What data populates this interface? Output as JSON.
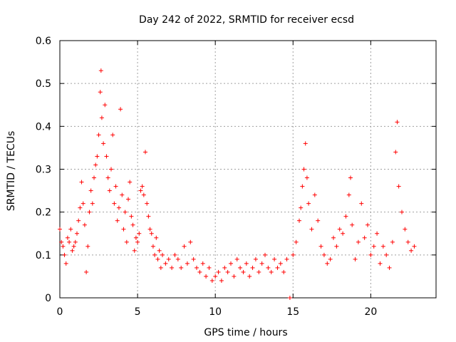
{
  "chart_data": {
    "type": "scatter",
    "title": "Day 242 of 2022, SRMTID for receiver ecsd",
    "xlabel": "GPS time / hours",
    "ylabel": "SRMTID / TECUs",
    "xlim": [
      0,
      24.2
    ],
    "ylim": [
      0,
      0.6
    ],
    "xticks": [
      0,
      5,
      10,
      15,
      20
    ],
    "yticks": [
      0,
      0.1,
      0.2,
      0.3,
      0.4,
      0.5,
      0.6
    ],
    "xtick_labels": [
      "0",
      "5",
      "10",
      "15",
      "20"
    ],
    "ytick_labels": [
      "0",
      "0.1",
      "0.2",
      "0.3",
      "0.4",
      "0.5",
      "0.6"
    ],
    "grid": true,
    "marker": "+",
    "color": "#ff0000",
    "series": [
      {
        "name": "SRMTID",
        "points": [
          [
            0.0,
            0.16
          ],
          [
            0.1,
            0.13
          ],
          [
            0.2,
            0.12
          ],
          [
            0.3,
            0.1
          ],
          [
            0.4,
            0.08
          ],
          [
            0.5,
            0.14
          ],
          [
            0.6,
            0.13
          ],
          [
            0.7,
            0.16
          ],
          [
            0.8,
            0.11
          ],
          [
            0.9,
            0.12
          ],
          [
            1.0,
            0.13
          ],
          [
            1.1,
            0.15
          ],
          [
            1.2,
            0.18
          ],
          [
            1.3,
            0.21
          ],
          [
            1.4,
            0.27
          ],
          [
            1.5,
            0.22
          ],
          [
            1.6,
            0.17
          ],
          [
            1.7,
            0.06
          ],
          [
            1.8,
            0.12
          ],
          [
            1.9,
            0.2
          ],
          [
            2.0,
            0.25
          ],
          [
            2.1,
            0.22
          ],
          [
            2.2,
            0.28
          ],
          [
            2.3,
            0.31
          ],
          [
            2.4,
            0.33
          ],
          [
            2.5,
            0.38
          ],
          [
            2.6,
            0.48
          ],
          [
            2.65,
            0.53
          ],
          [
            2.7,
            0.42
          ],
          [
            2.8,
            0.36
          ],
          [
            2.9,
            0.45
          ],
          [
            3.0,
            0.33
          ],
          [
            3.1,
            0.28
          ],
          [
            3.2,
            0.25
          ],
          [
            3.3,
            0.3
          ],
          [
            3.4,
            0.38
          ],
          [
            3.5,
            0.22
          ],
          [
            3.6,
            0.26
          ],
          [
            3.7,
            0.18
          ],
          [
            3.8,
            0.21
          ],
          [
            3.9,
            0.44
          ],
          [
            4.0,
            0.24
          ],
          [
            4.1,
            0.16
          ],
          [
            4.2,
            0.2
          ],
          [
            4.3,
            0.13
          ],
          [
            4.4,
            0.23
          ],
          [
            4.5,
            0.27
          ],
          [
            4.6,
            0.19
          ],
          [
            4.7,
            0.17
          ],
          [
            4.8,
            0.11
          ],
          [
            4.9,
            0.14
          ],
          [
            5.0,
            0.13
          ],
          [
            5.1,
            0.15
          ],
          [
            5.2,
            0.25
          ],
          [
            5.3,
            0.26
          ],
          [
            5.4,
            0.24
          ],
          [
            5.5,
            0.34
          ],
          [
            5.6,
            0.22
          ],
          [
            5.7,
            0.19
          ],
          [
            5.8,
            0.16
          ],
          [
            5.9,
            0.15
          ],
          [
            6.0,
            0.12
          ],
          [
            6.1,
            0.1
          ],
          [
            6.2,
            0.14
          ],
          [
            6.3,
            0.09
          ],
          [
            6.4,
            0.11
          ],
          [
            6.5,
            0.07
          ],
          [
            6.6,
            0.1
          ],
          [
            6.8,
            0.08
          ],
          [
            7.0,
            0.09
          ],
          [
            7.2,
            0.07
          ],
          [
            7.4,
            0.1
          ],
          [
            7.6,
            0.09
          ],
          [
            7.8,
            0.07
          ],
          [
            8.0,
            0.12
          ],
          [
            8.2,
            0.08
          ],
          [
            8.4,
            0.13
          ],
          [
            8.6,
            0.09
          ],
          [
            8.8,
            0.07
          ],
          [
            9.0,
            0.06
          ],
          [
            9.2,
            0.08
          ],
          [
            9.4,
            0.05
          ],
          [
            9.6,
            0.07
          ],
          [
            9.8,
            0.04
          ],
          [
            10.0,
            0.05
          ],
          [
            10.2,
            0.06
          ],
          [
            10.4,
            0.04
          ],
          [
            10.6,
            0.07
          ],
          [
            10.8,
            0.06
          ],
          [
            11.0,
            0.08
          ],
          [
            11.2,
            0.05
          ],
          [
            11.4,
            0.09
          ],
          [
            11.6,
            0.07
          ],
          [
            11.8,
            0.06
          ],
          [
            12.0,
            0.08
          ],
          [
            12.2,
            0.05
          ],
          [
            12.4,
            0.07
          ],
          [
            12.6,
            0.09
          ],
          [
            12.8,
            0.06
          ],
          [
            13.0,
            0.08
          ],
          [
            13.2,
            0.1
          ],
          [
            13.4,
            0.07
          ],
          [
            13.6,
            0.06
          ],
          [
            13.8,
            0.09
          ],
          [
            14.0,
            0.07
          ],
          [
            14.2,
            0.08
          ],
          [
            14.4,
            0.06
          ],
          [
            14.6,
            0.09
          ],
          [
            14.8,
            0.0
          ],
          [
            15.0,
            0.1
          ],
          [
            15.2,
            0.13
          ],
          [
            15.4,
            0.18
          ],
          [
            15.5,
            0.21
          ],
          [
            15.6,
            0.26
          ],
          [
            15.7,
            0.3
          ],
          [
            15.8,
            0.36
          ],
          [
            15.9,
            0.28
          ],
          [
            16.0,
            0.22
          ],
          [
            16.2,
            0.16
          ],
          [
            16.4,
            0.24
          ],
          [
            16.6,
            0.18
          ],
          [
            16.8,
            0.12
          ],
          [
            17.0,
            0.1
          ],
          [
            17.2,
            0.08
          ],
          [
            17.4,
            0.09
          ],
          [
            17.6,
            0.14
          ],
          [
            17.8,
            0.12
          ],
          [
            18.0,
            0.16
          ],
          [
            18.2,
            0.15
          ],
          [
            18.4,
            0.19
          ],
          [
            18.6,
            0.24
          ],
          [
            18.7,
            0.28
          ],
          [
            18.8,
            0.17
          ],
          [
            19.0,
            0.09
          ],
          [
            19.2,
            0.13
          ],
          [
            19.4,
            0.22
          ],
          [
            19.6,
            0.14
          ],
          [
            19.8,
            0.17
          ],
          [
            20.0,
            0.1
          ],
          [
            20.2,
            0.12
          ],
          [
            20.4,
            0.15
          ],
          [
            20.6,
            0.08
          ],
          [
            20.8,
            0.12
          ],
          [
            21.0,
            0.1
          ],
          [
            21.2,
            0.07
          ],
          [
            21.4,
            0.13
          ],
          [
            21.6,
            0.34
          ],
          [
            21.7,
            0.41
          ],
          [
            21.8,
            0.26
          ],
          [
            22.0,
            0.2
          ],
          [
            22.2,
            0.16
          ],
          [
            22.4,
            0.13
          ],
          [
            22.6,
            0.11
          ],
          [
            22.8,
            0.12
          ]
        ]
      }
    ]
  }
}
